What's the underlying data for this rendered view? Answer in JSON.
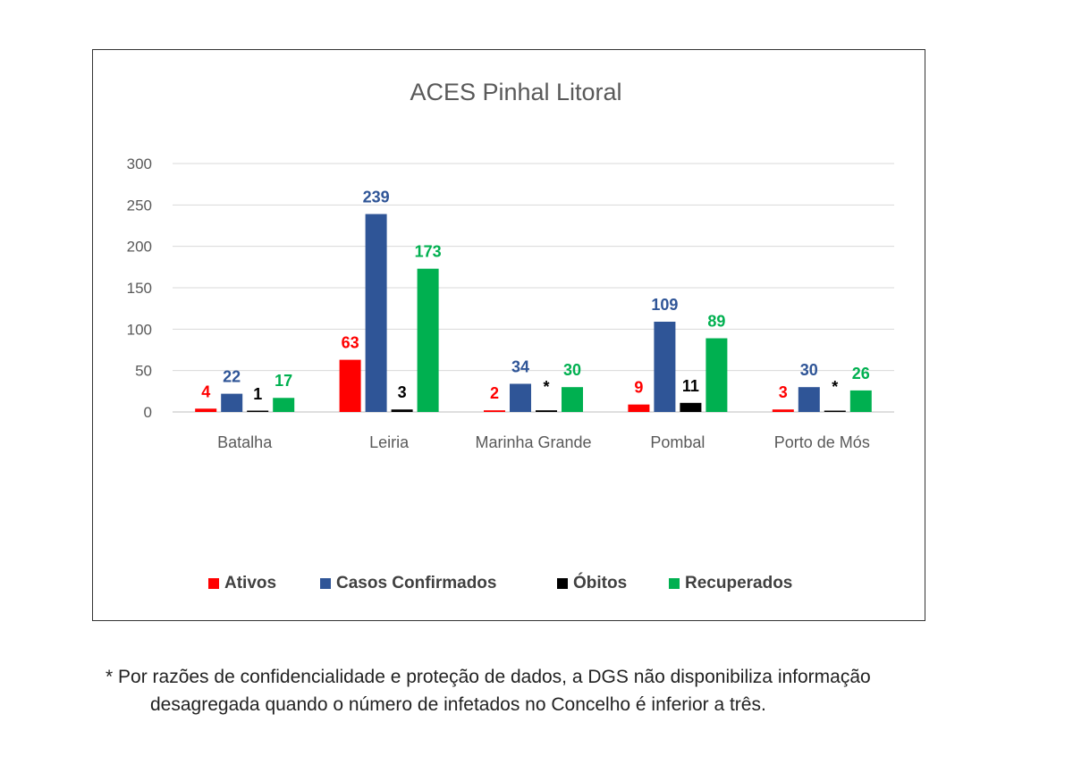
{
  "chart_data": {
    "type": "bar",
    "title": "ACES Pinhal Litoral",
    "categories": [
      "Batalha",
      "Leiria",
      "Marinha Grande",
      "Pombal",
      "Porto de Mós"
    ],
    "ylim": [
      0,
      300
    ],
    "yticks": [
      0,
      50,
      100,
      150,
      200,
      250,
      300
    ],
    "grid": true,
    "legend_position": "bottom",
    "series": [
      {
        "name": "Ativos",
        "color": "#ff0000",
        "values": [
          4,
          63,
          2,
          9,
          3
        ],
        "labels": [
          "4",
          "63",
          "2",
          "9",
          "3"
        ]
      },
      {
        "name": "Casos Confirmados",
        "color": "#2f5597",
        "values": [
          22,
          239,
          34,
          109,
          30
        ],
        "labels": [
          "22",
          "239",
          "34",
          "109",
          "30"
        ]
      },
      {
        "name": "Óbitos",
        "color": "#000000",
        "values": [
          1,
          3,
          2,
          11,
          1
        ],
        "labels": [
          "1",
          "3",
          "*",
          "11",
          "*"
        ]
      },
      {
        "name": "Recuperados",
        "color": "#00b050",
        "values": [
          17,
          173,
          30,
          89,
          26
        ],
        "labels": [
          "17",
          "173",
          "30",
          "89",
          "26"
        ]
      }
    ]
  },
  "footnote": {
    "line1": "* Por razões de confidencialidade e proteção de dados, a DGS não disponibiliza informação",
    "line2": "desagregada quando o número de infetados no Concelho é inferior a três."
  }
}
